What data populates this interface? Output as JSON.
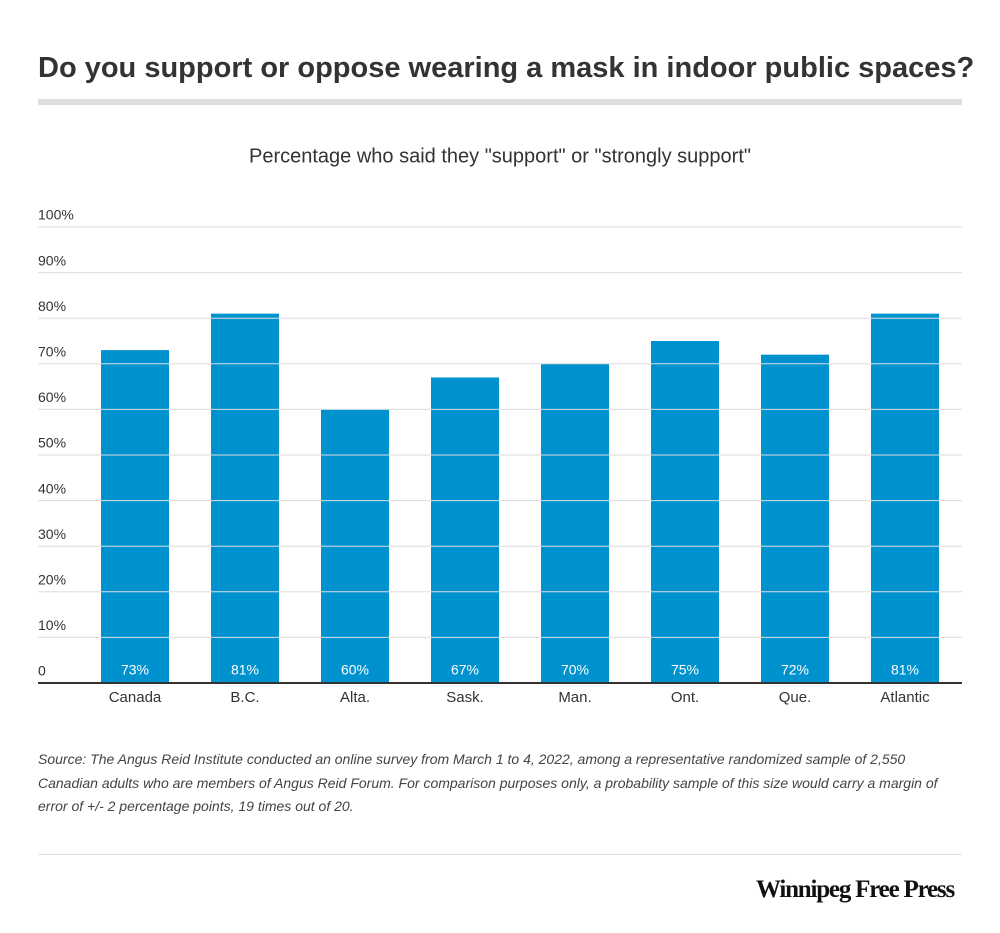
{
  "chart_data": {
    "type": "bar",
    "title": "Do you support or oppose wearing a mask in indoor public spaces?",
    "subtitle": "Percentage who said they \"support\" or \"strongly support\"",
    "categories": [
      "Canada",
      "B.C.",
      "Alta.",
      "Sask.",
      "Man.",
      "Ont.",
      "Que.",
      "Atlantic"
    ],
    "values": [
      73,
      81,
      60,
      67,
      70,
      75,
      72,
      81
    ],
    "value_labels": [
      "73%",
      "81%",
      "60%",
      "67%",
      "70%",
      "75%",
      "72%",
      "81%"
    ],
    "color": "#0092cf",
    "ylim": [
      0,
      100
    ],
    "yticks": [
      0,
      {
        "value": 10,
        "label": "10%"
      },
      {
        "value": 20,
        "label": "20%"
      },
      {
        "value": 30,
        "label": "30%"
      },
      {
        "value": 40,
        "label": "40%"
      },
      {
        "value": 50,
        "label": "50%"
      },
      {
        "value": 60,
        "label": "60%"
      },
      {
        "value": 70,
        "label": "70%"
      },
      {
        "value": 80,
        "label": "80%"
      },
      {
        "value": 90,
        "label": "90%"
      },
      {
        "value": 100,
        "label": "100%"
      }
    ],
    "grid": true,
    "source": "Source: The Angus Reid Institute conducted an online survey from March 1 to 4, 2022, among a representative randomized sample of 2,550 Canadian adults who are members of Angus Reid Forum. For comparison purposes only, a probability sample of this size would carry a margin of error of +/- 2 percentage points, 19 times out of 20.",
    "logo": "Winnipeg Free Press"
  }
}
